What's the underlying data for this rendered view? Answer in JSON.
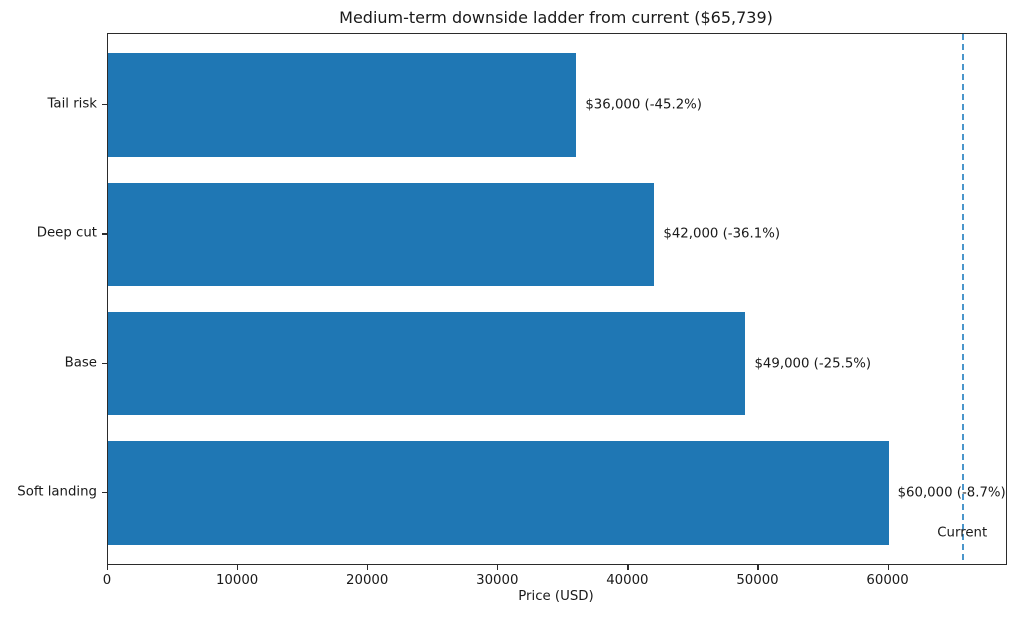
{
  "chart_data": {
    "type": "bar",
    "orientation": "horizontal",
    "title": "Medium-term downside ladder from current ($65,739)",
    "xlabel": "Price (USD)",
    "ylabel": "",
    "categories": [
      "Tail risk",
      "Deep cut",
      "Base",
      "Soft landing"
    ],
    "values": [
      36000,
      42000,
      49000,
      60000
    ],
    "bar_labels": [
      "$36,000 (-45.2%)",
      "$42,000 (-36.1%)",
      "$49,000 (-25.5%)",
      "$60,000 (-8.7%)"
    ],
    "x_ticks": [
      0,
      10000,
      20000,
      30000,
      40000,
      50000,
      60000
    ],
    "x_tick_labels": [
      "0",
      "10000",
      "20000",
      "30000",
      "40000",
      "50000",
      "60000"
    ],
    "xlim": [
      0,
      69026
    ],
    "grid": false,
    "legend_position": "none",
    "reference_line": {
      "value": 65739,
      "label": "Current",
      "style": "dashed"
    },
    "colors": {
      "bar": "#1f77b4",
      "reference_line": "#4a96cb",
      "spine": "#2b2b2b",
      "text": "#1a1a1a",
      "background": "#ffffff"
    }
  }
}
